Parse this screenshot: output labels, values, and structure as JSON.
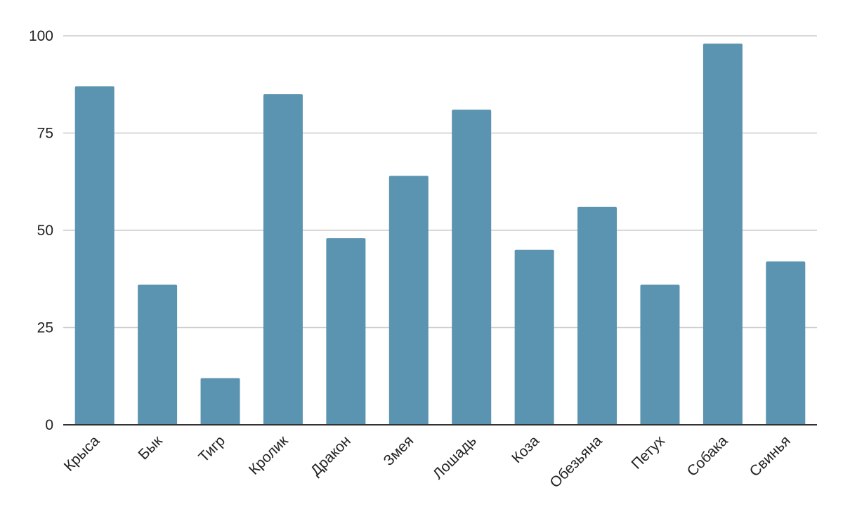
{
  "chart_data": {
    "type": "bar",
    "title": "",
    "xlabel": "",
    "ylabel": "",
    "categories": [
      "Крыса",
      "Бык",
      "Тигр",
      "Кролик",
      "Дракон",
      "Змея",
      "Лошадь",
      "Коза",
      "Обезьяна",
      "Петух",
      "Собака",
      "Свинья"
    ],
    "values": [
      87,
      36,
      12,
      85,
      48,
      64,
      81,
      45,
      56,
      36,
      98,
      42
    ],
    "ylim": [
      0,
      100
    ],
    "yticks": [
      "0",
      "25",
      "50",
      "75",
      "100"
    ],
    "grid": true,
    "legend": "none",
    "bar_color": "#5a94b0"
  }
}
